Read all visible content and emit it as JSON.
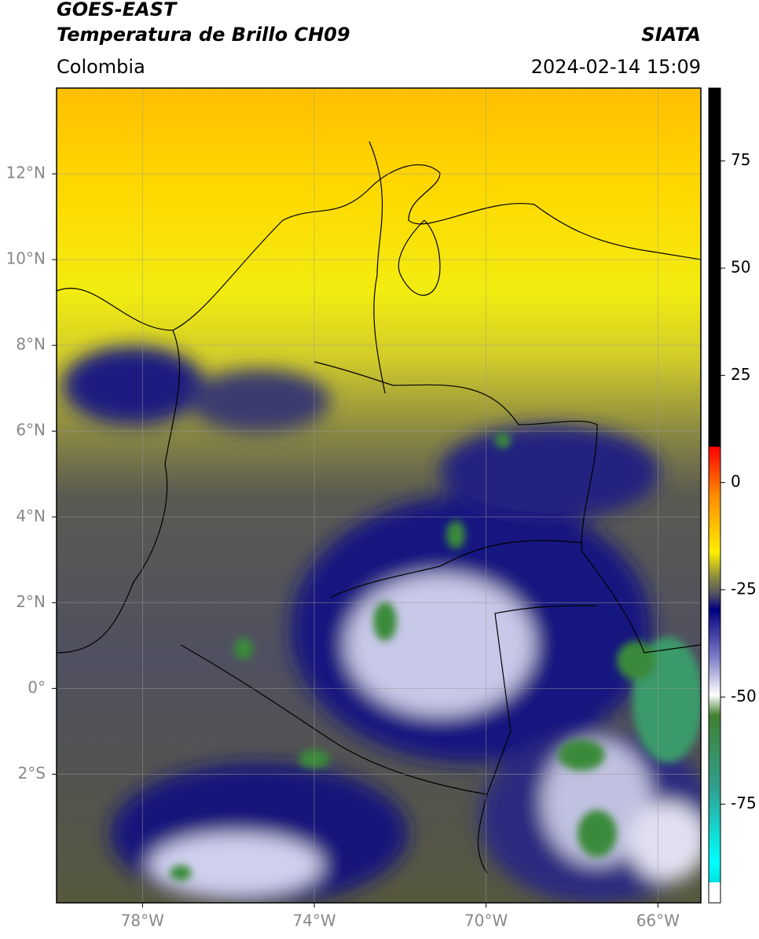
{
  "header": {
    "title": "GOES-EAST",
    "subtitle": "Temperatura de Brillo CH09",
    "source": "SIATA",
    "region": "Colombia",
    "timestamp": "2024-02-14 15:09"
  },
  "map": {
    "lonlim": [
      -80,
      -65
    ],
    "latlim": [
      -5,
      14
    ],
    "grid": true,
    "lon_ticks": [
      {
        "value": -78,
        "label": "78°W"
      },
      {
        "value": -74,
        "label": "74°W"
      },
      {
        "value": -70,
        "label": "70°W"
      },
      {
        "value": -66,
        "label": "66°W"
      }
    ],
    "lat_ticks": [
      {
        "value": -2,
        "label": "2°S"
      },
      {
        "value": 0,
        "label": "0°"
      },
      {
        "value": 2,
        "label": "2°N"
      },
      {
        "value": 4,
        "label": "4°N"
      },
      {
        "value": 6,
        "label": "6°N"
      },
      {
        "value": 8,
        "label": "8°N"
      },
      {
        "value": 10,
        "label": "10°N"
      },
      {
        "value": 12,
        "label": "12°N"
      }
    ]
  },
  "colorbar": {
    "lim": [
      -98,
      92
    ],
    "ticks": [
      -75,
      -50,
      -25,
      0,
      25,
      50,
      75
    ]
  }
}
